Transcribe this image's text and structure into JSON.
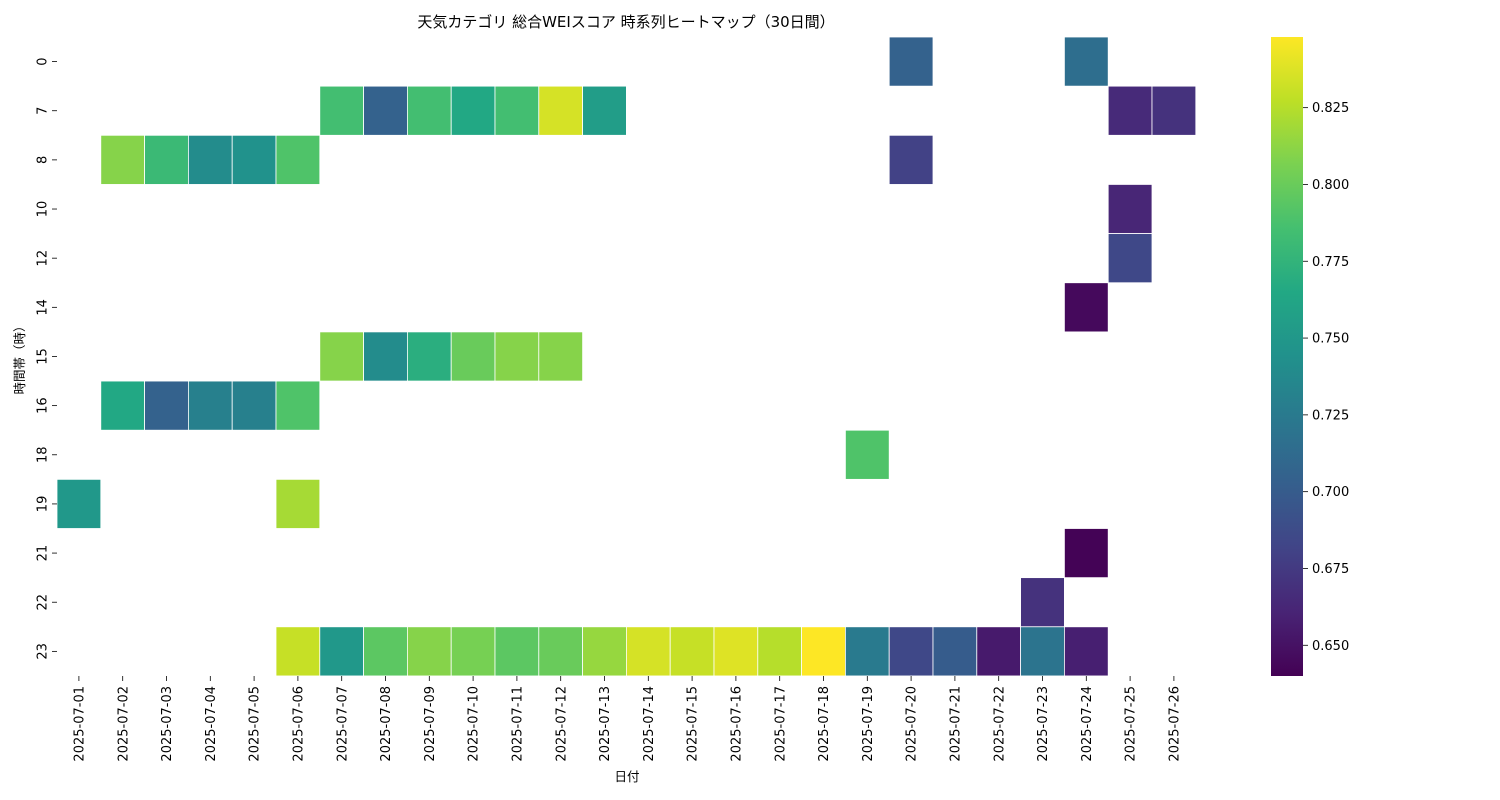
{
  "chart_data": {
    "type": "heatmap",
    "title": "天気カテゴリ 総合WEIスコア 時系列ヒートマップ（30日間）",
    "xlabel": "日付",
    "ylabel": "時間帯（時）",
    "x_categories": [
      "2025-07-01",
      "2025-07-02",
      "2025-07-03",
      "2025-07-04",
      "2025-07-05",
      "2025-07-06",
      "2025-07-07",
      "2025-07-08",
      "2025-07-09",
      "2025-07-10",
      "2025-07-11",
      "2025-07-12",
      "2025-07-13",
      "2025-07-14",
      "2025-07-15",
      "2025-07-16",
      "2025-07-17",
      "2025-07-18",
      "2025-07-19",
      "2025-07-20",
      "2025-07-21",
      "2025-07-22",
      "2025-07-23",
      "2025-07-24",
      "2025-07-25",
      "2025-07-26"
    ],
    "y_categories": [
      "0",
      "7",
      "8",
      "10",
      "12",
      "14",
      "15",
      "16",
      "18",
      "19",
      "21",
      "22",
      "23"
    ],
    "colormap": "viridis",
    "colorbar": {
      "range": [
        0.64,
        0.848
      ],
      "ticks": [
        "0.650",
        "0.675",
        "0.700",
        "0.725",
        "0.750",
        "0.775",
        "0.800",
        "0.825"
      ]
    },
    "grid": false,
    "cells": [
      {
        "x": "2025-07-20",
        "y": "0",
        "value": 0.705
      },
      {
        "x": "2025-07-24",
        "y": "0",
        "value": 0.715
      },
      {
        "x": "2025-07-07",
        "y": "7",
        "value": 0.785
      },
      {
        "x": "2025-07-08",
        "y": "7",
        "value": 0.705
      },
      {
        "x": "2025-07-09",
        "y": "7",
        "value": 0.785
      },
      {
        "x": "2025-07-10",
        "y": "7",
        "value": 0.765
      },
      {
        "x": "2025-07-11",
        "y": "7",
        "value": 0.785
      },
      {
        "x": "2025-07-12",
        "y": "7",
        "value": 0.835
      },
      {
        "x": "2025-07-13",
        "y": "7",
        "value": 0.755
      },
      {
        "x": "2025-07-25",
        "y": "7",
        "value": 0.665
      },
      {
        "x": "2025-07-26",
        "y": "7",
        "value": 0.67
      },
      {
        "x": "2025-07-02",
        "y": "8",
        "value": 0.81
      },
      {
        "x": "2025-07-03",
        "y": "8",
        "value": 0.78
      },
      {
        "x": "2025-07-04",
        "y": "8",
        "value": 0.74
      },
      {
        "x": "2025-07-05",
        "y": "8",
        "value": 0.745
      },
      {
        "x": "2025-07-06",
        "y": "8",
        "value": 0.79
      },
      {
        "x": "2025-07-20",
        "y": "8",
        "value": 0.68
      },
      {
        "x": "2025-07-25",
        "y": "10",
        "value": 0.662
      },
      {
        "x": "2025-07-25",
        "y": "12",
        "value": 0.685
      },
      {
        "x": "2025-07-24",
        "y": "14",
        "value": 0.645
      },
      {
        "x": "2025-07-07",
        "y": "15",
        "value": 0.81
      },
      {
        "x": "2025-07-08",
        "y": "15",
        "value": 0.74
      },
      {
        "x": "2025-07-09",
        "y": "15",
        "value": 0.77
      },
      {
        "x": "2025-07-10",
        "y": "15",
        "value": 0.8
      },
      {
        "x": "2025-07-11",
        "y": "15",
        "value": 0.81
      },
      {
        "x": "2025-07-12",
        "y": "15",
        "value": 0.81
      },
      {
        "x": "2025-07-02",
        "y": "16",
        "value": 0.765
      },
      {
        "x": "2025-07-03",
        "y": "16",
        "value": 0.705
      },
      {
        "x": "2025-07-04",
        "y": "16",
        "value": 0.73
      },
      {
        "x": "2025-07-05",
        "y": "16",
        "value": 0.73
      },
      {
        "x": "2025-07-06",
        "y": "16",
        "value": 0.79
      },
      {
        "x": "2025-07-19",
        "y": "18",
        "value": 0.79
      },
      {
        "x": "2025-07-01",
        "y": "19",
        "value": 0.75
      },
      {
        "x": "2025-07-06",
        "y": "19",
        "value": 0.82
      },
      {
        "x": "2025-07-24",
        "y": "21",
        "value": 0.641
      },
      {
        "x": "2025-07-23",
        "y": "22",
        "value": 0.67
      },
      {
        "x": "2025-07-06",
        "y": "23",
        "value": 0.83
      },
      {
        "x": "2025-07-07",
        "y": "23",
        "value": 0.75
      },
      {
        "x": "2025-07-08",
        "y": "23",
        "value": 0.795
      },
      {
        "x": "2025-07-09",
        "y": "23",
        "value": 0.81
      },
      {
        "x": "2025-07-10",
        "y": "23",
        "value": 0.805
      },
      {
        "x": "2025-07-11",
        "y": "23",
        "value": 0.795
      },
      {
        "x": "2025-07-12",
        "y": "23",
        "value": 0.8
      },
      {
        "x": "2025-07-13",
        "y": "23",
        "value": 0.815
      },
      {
        "x": "2025-07-14",
        "y": "23",
        "value": 0.835
      },
      {
        "x": "2025-07-15",
        "y": "23",
        "value": 0.83
      },
      {
        "x": "2025-07-16",
        "y": "23",
        "value": 0.838
      },
      {
        "x": "2025-07-17",
        "y": "23",
        "value": 0.825
      },
      {
        "x": "2025-07-18",
        "y": "23",
        "value": 0.848
      },
      {
        "x": "2025-07-19",
        "y": "23",
        "value": 0.725
      },
      {
        "x": "2025-07-20",
        "y": "23",
        "value": 0.685
      },
      {
        "x": "2025-07-21",
        "y": "23",
        "value": 0.7
      },
      {
        "x": "2025-07-22",
        "y": "23",
        "value": 0.655
      },
      {
        "x": "2025-07-23",
        "y": "23",
        "value": 0.72
      },
      {
        "x": "2025-07-24",
        "y": "23",
        "value": 0.658
      }
    ]
  }
}
